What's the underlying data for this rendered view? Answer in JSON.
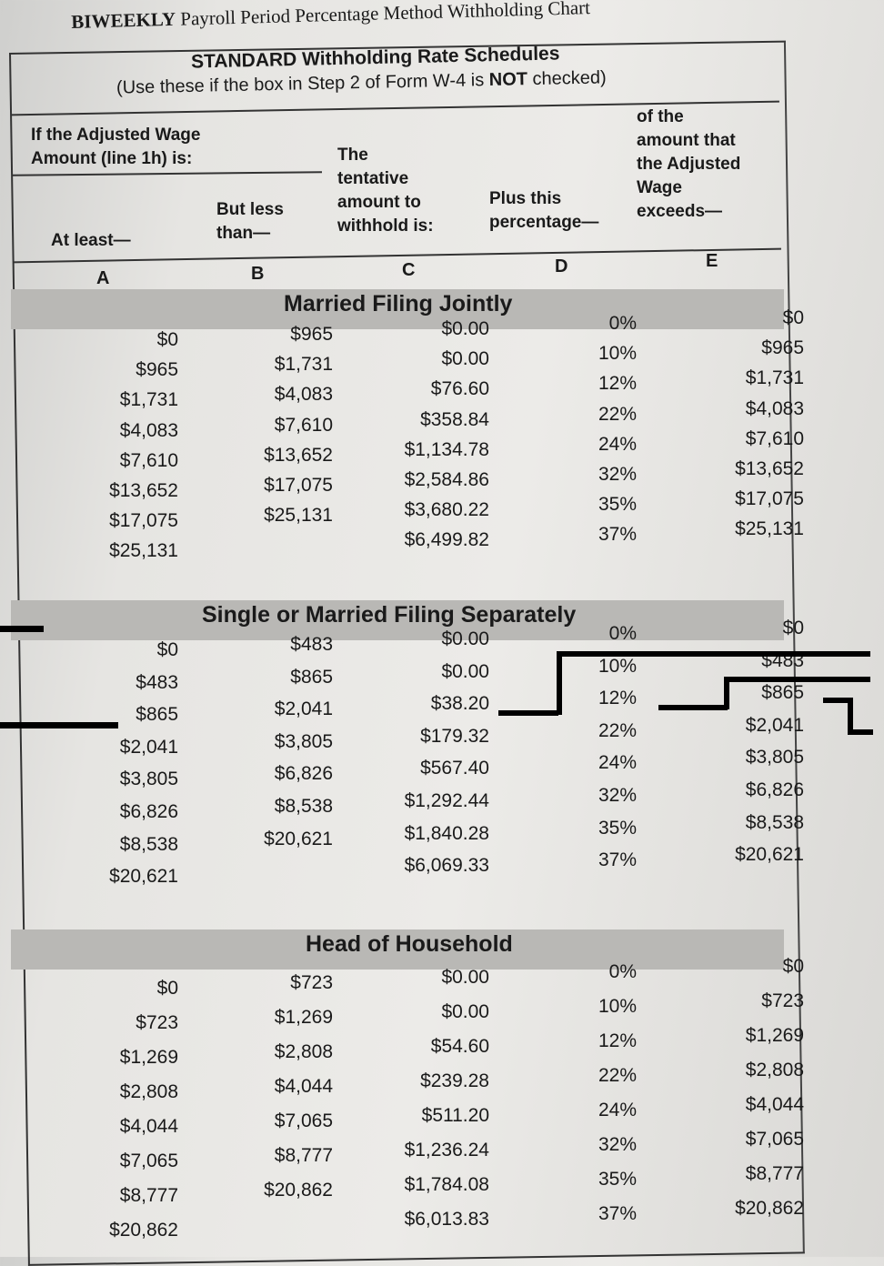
{
  "title": {
    "bold": "BIWEEKLY",
    "rest": " Payroll Period Percentage Method Withholding Chart"
  },
  "header": {
    "schedule_title": "STANDARD Withholding Rate Schedules",
    "note_pre": "(Use these if the box in Step 2 of Form W-4 is ",
    "note_bold": "NOT",
    "note_post": " checked)"
  },
  "columns": {
    "group_label_1": "If the Adjusted Wage",
    "group_label_2": "Amount (line 1h) is:",
    "a_label": "At least—",
    "b_label_1": "But less",
    "b_label_2": "than—",
    "c_label_1": "The",
    "c_label_2": "tentative",
    "c_label_3": "amount to",
    "c_label_4": "withhold is:",
    "d_label_1": "Plus this",
    "d_label_2": "percentage—",
    "e_label_1": "of the",
    "e_label_2": "amount that",
    "e_label_3": "the Adjusted",
    "e_label_4": "Wage",
    "e_label_5": "exceeds—",
    "letters": [
      "A",
      "B",
      "C",
      "D",
      "E"
    ]
  },
  "sections": [
    {
      "title": "Married Filing Jointly",
      "rows": [
        [
          "$0",
          "$965",
          "$0.00",
          "0%",
          "$0"
        ],
        [
          "$965",
          "$1,731",
          "$0.00",
          "10%",
          "$965"
        ],
        [
          "$1,731",
          "$4,083",
          "$76.60",
          "12%",
          "$1,731"
        ],
        [
          "$4,083",
          "$7,610",
          "$358.84",
          "22%",
          "$4,083"
        ],
        [
          "$7,610",
          "$13,652",
          "$1,134.78",
          "24%",
          "$7,610"
        ],
        [
          "$13,652",
          "$17,075",
          "$2,584.86",
          "32%",
          "$13,652"
        ],
        [
          "$17,075",
          "$25,131",
          "$3,680.22",
          "35%",
          "$17,075"
        ],
        [
          "$25,131",
          "",
          "$6,499.82",
          "37%",
          "$25,131"
        ]
      ]
    },
    {
      "title": "Single or Married Filing Separately",
      "rows": [
        [
          "$0",
          "$483",
          "$0.00",
          "0%",
          "$0"
        ],
        [
          "$483",
          "$865",
          "$0.00",
          "10%",
          "$483"
        ],
        [
          "$865",
          "$2,041",
          "$38.20",
          "12%",
          "$865"
        ],
        [
          "$2,041",
          "$3,805",
          "$179.32",
          "22%",
          "$2,041"
        ],
        [
          "$3,805",
          "$6,826",
          "$567.40",
          "24%",
          "$3,805"
        ],
        [
          "$6,826",
          "$8,538",
          "$1,292.44",
          "32%",
          "$6,826"
        ],
        [
          "$8,538",
          "$20,621",
          "$1,840.28",
          "35%",
          "$8,538"
        ],
        [
          "$20,621",
          "",
          "$6,069.33",
          "37%",
          "$20,621"
        ]
      ]
    },
    {
      "title": "Head of Household",
      "rows": [
        [
          "$0",
          "$723",
          "$0.00",
          "0%",
          "$0"
        ],
        [
          "$723",
          "$1,269",
          "$0.00",
          "10%",
          "$723"
        ],
        [
          "$1,269",
          "$2,808",
          "$54.60",
          "12%",
          "$1,269"
        ],
        [
          "$2,808",
          "$4,044",
          "$239.28",
          "22%",
          "$2,808"
        ],
        [
          "$4,044",
          "$7,065",
          "$511.20",
          "24%",
          "$4,044"
        ],
        [
          "$7,065",
          "$8,777",
          "$1,236.24",
          "32%",
          "$7,065"
        ],
        [
          "$8,777",
          "$20,862",
          "$1,784.08",
          "35%",
          "$8,777"
        ],
        [
          "$20,862",
          "",
          "$6,013.83",
          "37%",
          "$20,862"
        ]
      ]
    }
  ]
}
